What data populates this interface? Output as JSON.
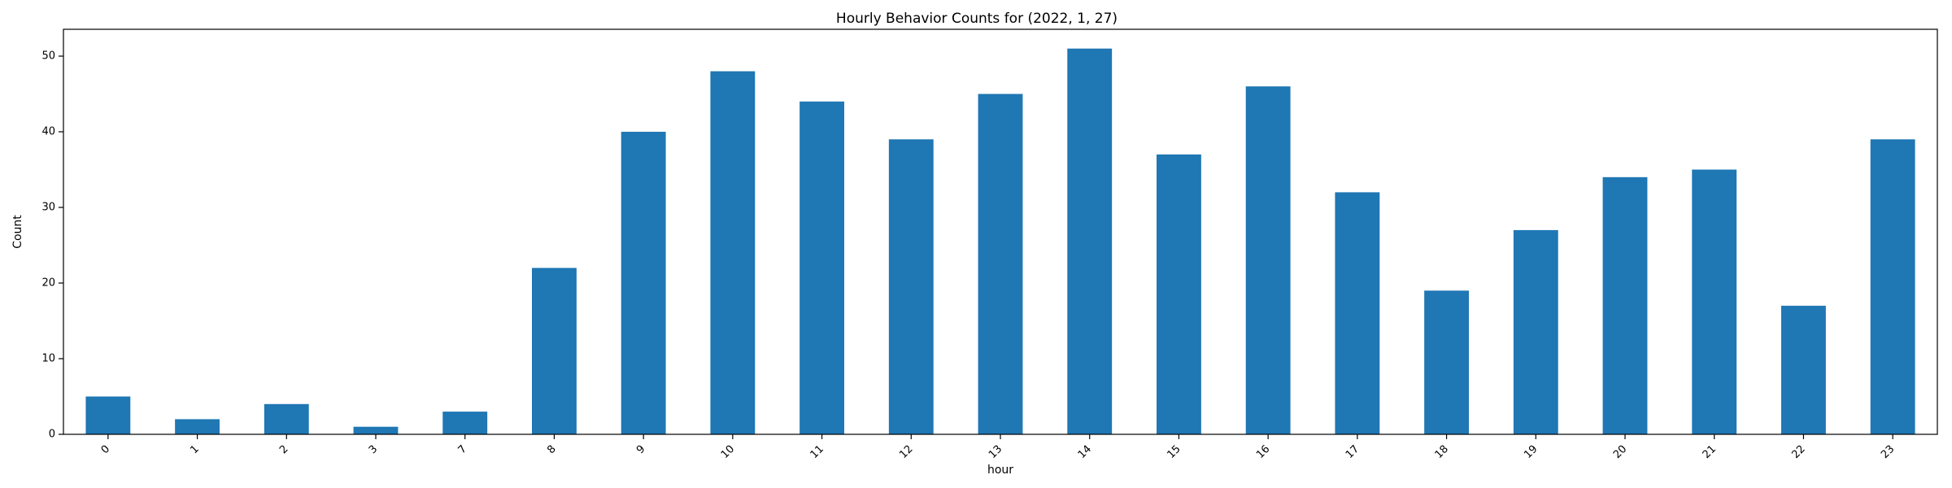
{
  "chart_data": {
    "type": "bar",
    "title": "Hourly Behavior Counts for (2022, 1, 27)",
    "xlabel": "hour",
    "ylabel": "Count",
    "categories": [
      "0",
      "1",
      "2",
      "3",
      "7",
      "8",
      "9",
      "10",
      "11",
      "12",
      "13",
      "14",
      "15",
      "16",
      "17",
      "18",
      "19",
      "20",
      "21",
      "22",
      "23"
    ],
    "values": [
      5,
      2,
      4,
      1,
      3,
      22,
      40,
      48,
      44,
      39,
      45,
      51,
      37,
      46,
      32,
      19,
      27,
      34,
      35,
      17,
      39
    ],
    "ylim": [
      0,
      53.55
    ],
    "yticks": [
      "0",
      "10",
      "20",
      "30",
      "40",
      "50"
    ],
    "grid": false,
    "bar_color": "#1f77b4",
    "xtick_rotation": 45
  }
}
